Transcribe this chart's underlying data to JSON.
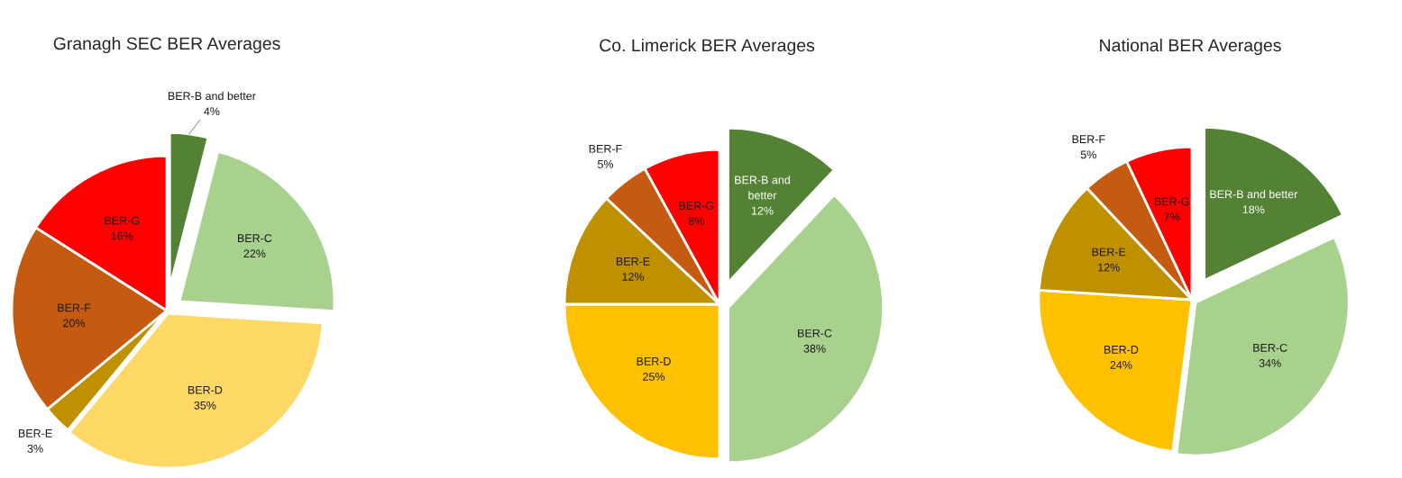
{
  "chart_data": [
    {
      "type": "pie",
      "title": "Granagh SEC BER Averages",
      "categories": [
        "BER-B and better",
        "BER-C",
        "BER-D",
        "BER-E",
        "BER-F",
        "BER-G"
      ],
      "values": [
        4,
        22,
        35,
        3,
        20,
        16
      ],
      "value_labels": [
        "4%",
        "22%",
        "35%",
        "3%",
        "20%",
        "16%"
      ],
      "colors": [
        "#548235",
        "#a9d18e",
        "#ffd966",
        "#bf9000",
        "#c55a11",
        "#ff0000"
      ]
    },
    {
      "type": "pie",
      "title": "Co. Limerick BER Averages",
      "categories": [
        "BER-B and\nbetter",
        "BER-C",
        "BER-D",
        "BER-E",
        "BER-F",
        "BER-G"
      ],
      "values": [
        12,
        38,
        25,
        12,
        5,
        8
      ],
      "value_labels": [
        "12%",
        "38%",
        "25%",
        "12%",
        "5%",
        "8%"
      ],
      "colors": [
        "#548235",
        "#a9d18e",
        "#ffc000",
        "#bf9000",
        "#c55a11",
        "#ff0000"
      ]
    },
    {
      "type": "pie",
      "title": "National BER Averages",
      "categories": [
        "BER-B and better",
        "BER-C",
        "BER-D",
        "BER-E",
        "BER-F",
        "BER-G"
      ],
      "values": [
        18,
        34,
        24,
        12,
        5,
        7
      ],
      "value_labels": [
        "18%",
        "34%",
        "24%",
        "12%",
        "5%",
        "7%"
      ],
      "colors": [
        "#548235",
        "#a9d18e",
        "#ffc000",
        "#bf9000",
        "#c55a11",
        "#ff0000"
      ]
    }
  ]
}
